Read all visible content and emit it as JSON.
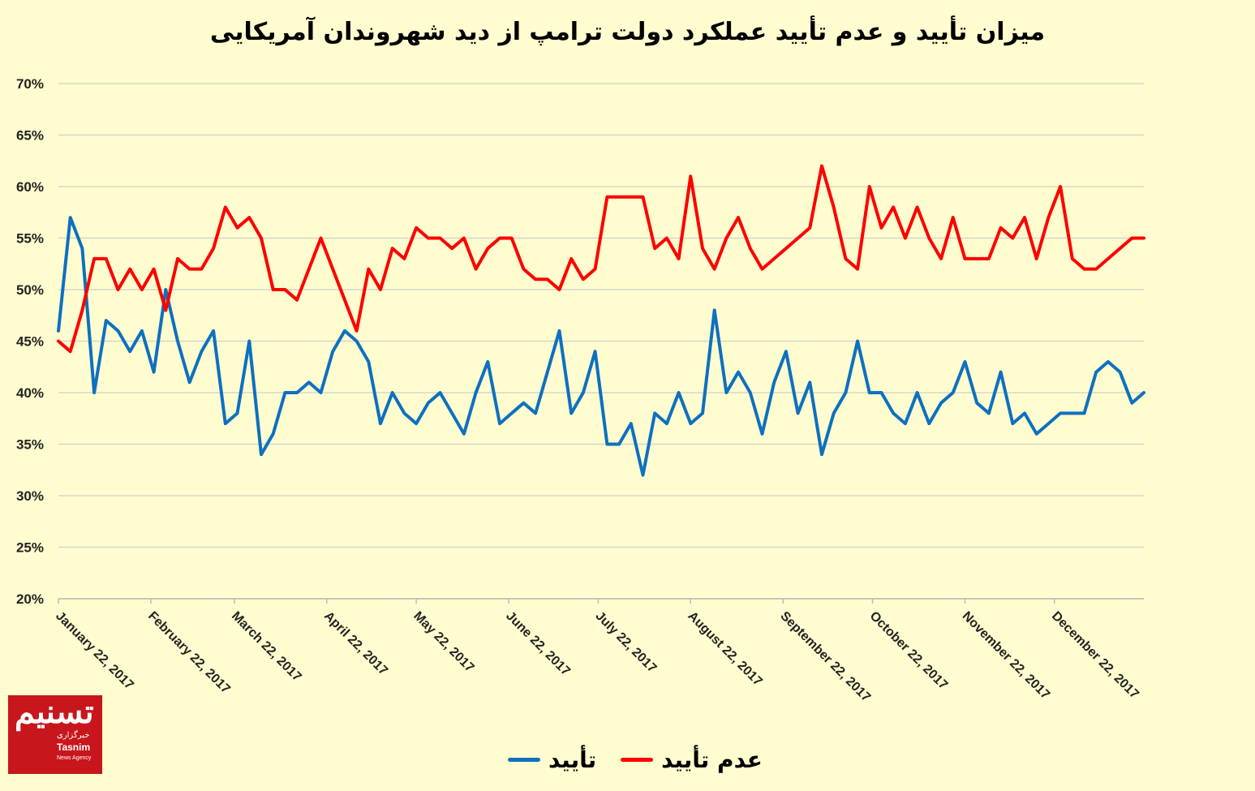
{
  "chart_data": {
    "type": "line",
    "title": "میزان تأیید و عدم تأیید عملکرد دولت ترامپ از دید شهروندان آمریکایی",
    "xlabel": "",
    "ylabel": "",
    "ylim": [
      20,
      70
    ],
    "yticks": [
      "20%",
      "25%",
      "30%",
      "35%",
      "40%",
      "45%",
      "50%",
      "55%",
      "60%",
      "65%",
      "70%"
    ],
    "xlim": [
      "2017-01-22",
      "2018-01-21"
    ],
    "xticks": [
      {
        "date": "2017-01-22",
        "label": "January 22, 2017"
      },
      {
        "date": "2017-02-22",
        "label": "February 22, 2017"
      },
      {
        "date": "2017-03-22",
        "label": "March 22, 2017"
      },
      {
        "date": "2017-04-22",
        "label": "April 22, 2017"
      },
      {
        "date": "2017-05-22",
        "label": "May 22, 2017"
      },
      {
        "date": "2017-06-22",
        "label": "June 22, 2017"
      },
      {
        "date": "2017-07-22",
        "label": "July 22, 2017"
      },
      {
        "date": "2017-08-22",
        "label": "August 22, 2017"
      },
      {
        "date": "2017-09-22",
        "label": "September 22, 2017"
      },
      {
        "date": "2017-10-22",
        "label": "October 22, 2017"
      },
      {
        "date": "2017-11-22",
        "label": "November 22, 2017"
      },
      {
        "date": "2017-12-22",
        "label": "December 22, 2017"
      }
    ],
    "grid": true,
    "legend_position": "bottom",
    "x": [
      "2017-01-22",
      "2017-01-26",
      "2017-01-30",
      "2017-02-03",
      "2017-02-07",
      "2017-02-11",
      "2017-02-15",
      "2017-02-19",
      "2017-02-23",
      "2017-02-27",
      "2017-03-03",
      "2017-03-07",
      "2017-03-11",
      "2017-03-15",
      "2017-03-19",
      "2017-03-23",
      "2017-03-27",
      "2017-03-31",
      "2017-04-04",
      "2017-04-08",
      "2017-04-12",
      "2017-04-16",
      "2017-04-20",
      "2017-04-24",
      "2017-04-28",
      "2017-05-02",
      "2017-05-06",
      "2017-05-10",
      "2017-05-14",
      "2017-05-18",
      "2017-05-22",
      "2017-05-26",
      "2017-05-30",
      "2017-06-03",
      "2017-06-07",
      "2017-06-11",
      "2017-06-15",
      "2017-06-19",
      "2017-06-23",
      "2017-06-27",
      "2017-07-01",
      "2017-07-05",
      "2017-07-09",
      "2017-07-13",
      "2017-07-17",
      "2017-07-21",
      "2017-07-25",
      "2017-07-29",
      "2017-08-02",
      "2017-08-06",
      "2017-08-10",
      "2017-08-14",
      "2017-08-18",
      "2017-08-22",
      "2017-08-26",
      "2017-08-30",
      "2017-09-03",
      "2017-09-07",
      "2017-09-11",
      "2017-09-15",
      "2017-09-19",
      "2017-09-23",
      "2017-09-27",
      "2017-10-01",
      "2017-10-05",
      "2017-10-09",
      "2017-10-13",
      "2017-10-17",
      "2017-10-21",
      "2017-10-25",
      "2017-10-29",
      "2017-11-02",
      "2017-11-06",
      "2017-11-10",
      "2017-11-14",
      "2017-11-18",
      "2017-11-22",
      "2017-11-26",
      "2017-11-30",
      "2017-12-04",
      "2017-12-08",
      "2017-12-12",
      "2017-12-16",
      "2017-12-20",
      "2017-12-24",
      "2017-12-28",
      "2018-01-01",
      "2018-01-05",
      "2018-01-09",
      "2018-01-13",
      "2018-01-17",
      "2018-01-21"
    ],
    "series": [
      {
        "name": "تأیید",
        "color": "#0e70c0",
        "values": [
          46,
          57,
          54,
          40,
          47,
          46,
          44,
          46,
          42,
          50,
          45,
          41,
          44,
          46,
          37,
          38,
          45,
          34,
          36,
          40,
          40,
          41,
          40,
          44,
          46,
          45,
          43,
          37,
          40,
          38,
          37,
          39,
          40,
          38,
          36,
          40,
          43,
          37,
          38,
          39,
          38,
          42,
          46,
          38,
          40,
          44,
          35,
          35,
          37,
          32,
          38,
          37,
          40,
          37,
          38,
          48,
          40,
          42,
          40,
          36,
          41,
          44,
          38,
          41,
          34,
          38,
          40,
          45,
          40,
          40,
          38,
          37,
          40,
          37,
          39,
          40,
          43,
          39,
          38,
          42,
          37,
          38,
          36,
          37,
          38,
          38,
          38,
          42,
          43,
          42,
          39,
          40
        ]
      },
      {
        "name": "عدم تأیید",
        "color": "#ff0000",
        "values": [
          45,
          44,
          48,
          53,
          53,
          50,
          52,
          50,
          52,
          48,
          53,
          52,
          52,
          54,
          58,
          56,
          57,
          55,
          50,
          50,
          49,
          52,
          55,
          52,
          49,
          46,
          52,
          50,
          54,
          53,
          56,
          55,
          55,
          54,
          55,
          52,
          54,
          55,
          55,
          52,
          51,
          51,
          50,
          53,
          51,
          52,
          59,
          59,
          59,
          59,
          54,
          55,
          53,
          61,
          54,
          52,
          55,
          57,
          54,
          52,
          53,
          54,
          55,
          56,
          62,
          58,
          53,
          52,
          60,
          56,
          58,
          55,
          58,
          55,
          53,
          57,
          53,
          53,
          53,
          56,
          55,
          57,
          53,
          57,
          60,
          53,
          52,
          52,
          53,
          54,
          55,
          55
        ]
      }
    ]
  },
  "legend": {
    "approve": "تأیید",
    "disapprove": "عدم تأیید"
  },
  "logo": {
    "big": "تسنیم",
    "fa": "خبرگزاری",
    "en": "Tasnim",
    "sub": "News Agency",
    "color": "#c8161d"
  }
}
